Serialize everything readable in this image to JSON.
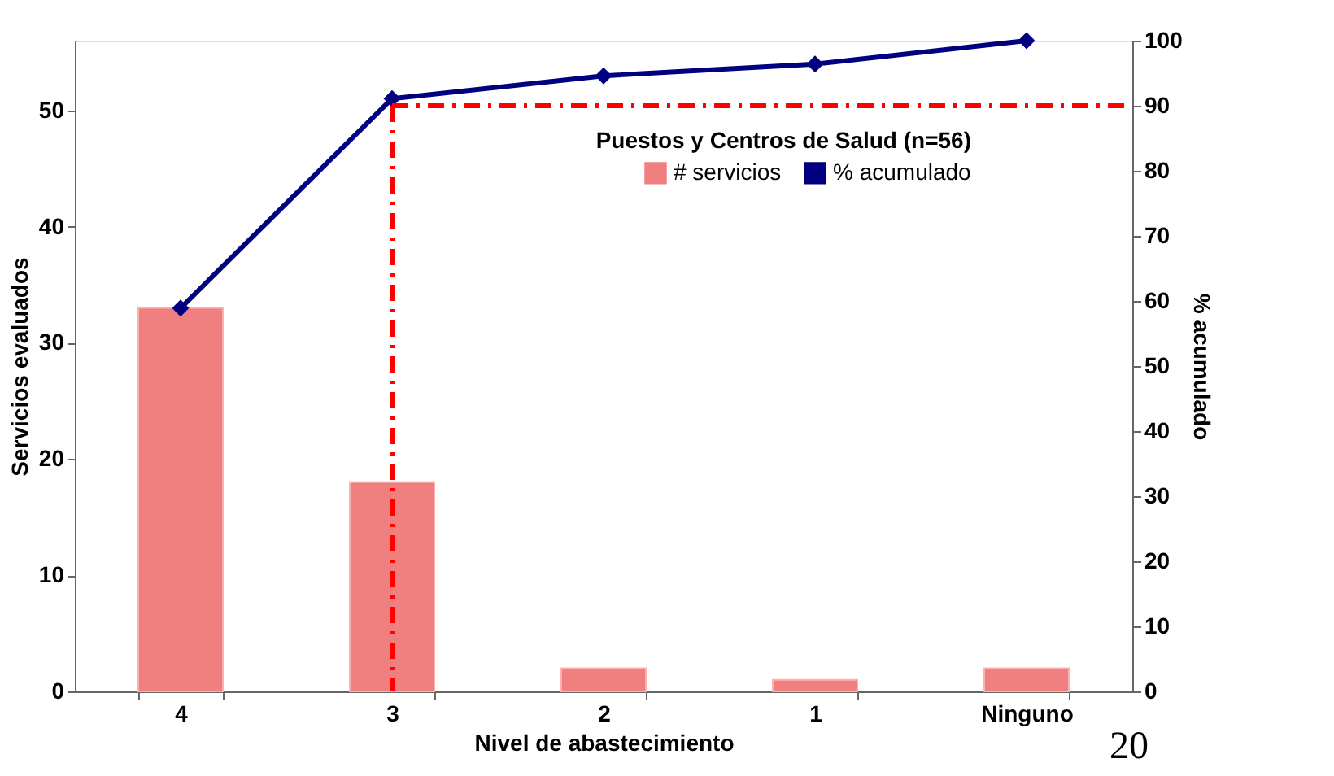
{
  "chart_data": {
    "type": "bar",
    "legend_title": "Puestos y Centros de Salud (n=56)",
    "xlabel": "Nivel de abastecimiento",
    "ylabel": "Servicios evaluados",
    "y2label": "% acumulado",
    "categories": [
      "4",
      "3",
      "2",
      "1",
      "Ninguno"
    ],
    "series": [
      {
        "name": "# servicios",
        "color": "#f08080",
        "values": [
          33,
          18,
          2,
          1,
          2
        ]
      },
      {
        "name": "% acumulado",
        "type": "line",
        "axis": "y2",
        "color": "#000080",
        "marker": "diamond",
        "values": [
          58.9,
          91.1,
          94.6,
          96.4,
          100
        ]
      }
    ],
    "ylim": [
      0,
      56
    ],
    "yticks": [
      0,
      10,
      20,
      30,
      40,
      50
    ],
    "y2lim": [
      0,
      100
    ],
    "y2ticks": [
      0,
      10,
      20,
      30,
      40,
      50,
      60,
      70,
      80,
      90,
      100
    ],
    "ref_lines": [
      {
        "axis": "y2",
        "value": 90,
        "color": "#ff0000",
        "line_style": "dashdot"
      },
      {
        "axis": "x",
        "value": "3",
        "color": "#ff0000",
        "line_style": "dashdot"
      }
    ],
    "legend": "top right",
    "grid": false,
    "annotations": [
      "20"
    ]
  }
}
